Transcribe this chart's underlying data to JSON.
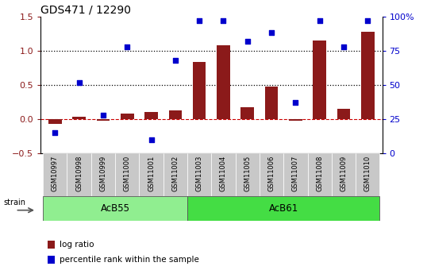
{
  "title": "GDS471 / 12290",
  "samples": [
    "GSM10997",
    "GSM10998",
    "GSM10999",
    "GSM11000",
    "GSM11001",
    "GSM11002",
    "GSM11003",
    "GSM11004",
    "GSM11005",
    "GSM11006",
    "GSM11007",
    "GSM11008",
    "GSM11009",
    "GSM11010"
  ],
  "log_ratio": [
    -0.07,
    0.03,
    -0.02,
    0.08,
    0.1,
    0.13,
    0.83,
    1.08,
    0.18,
    0.48,
    -0.02,
    1.15,
    0.15,
    1.28
  ],
  "percentile_rank": [
    15,
    52,
    28,
    78,
    10,
    68,
    97,
    97,
    82,
    88,
    37,
    97,
    78,
    97
  ],
  "groups": [
    {
      "label": "AcB55",
      "start": 0,
      "end": 5,
      "color": "#90EE90"
    },
    {
      "label": "AcB61",
      "start": 6,
      "end": 13,
      "color": "#44DD44"
    }
  ],
  "bar_color": "#8B1A1A",
  "scatter_color": "#0000CC",
  "ylim_left": [
    -0.5,
    1.5
  ],
  "ylim_right": [
    0,
    100
  ],
  "yticks_left": [
    -0.5,
    0.0,
    0.5,
    1.0,
    1.5
  ],
  "yticks_right": [
    0,
    25,
    50,
    75,
    100
  ],
  "hlines": [
    0.5,
    1.0
  ],
  "zero_line_color": "#CC0000",
  "background_color": "#ffffff",
  "strain_label": "strain",
  "label_bg_color": "#C8C8C8",
  "legend_items": [
    {
      "label": "log ratio",
      "color": "#8B1A1A"
    },
    {
      "label": "percentile rank within the sample",
      "color": "#0000CC"
    }
  ]
}
